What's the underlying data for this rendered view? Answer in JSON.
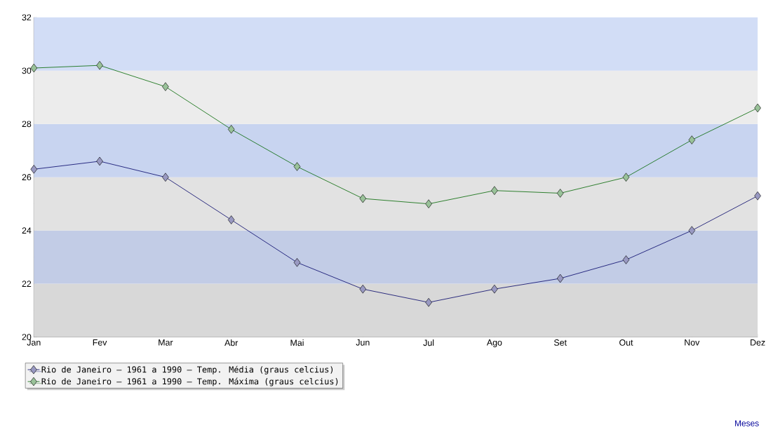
{
  "chart_data": {
    "type": "line",
    "annotations": [
      "Meses"
    ],
    "categories": [
      "Jan",
      "Fev",
      "Mar",
      "Abr",
      "Mai",
      "Jun",
      "Jul",
      "Ago",
      "Set",
      "Out",
      "Nov",
      "Dez"
    ],
    "series": [
      {
        "name": "Rio de Janeiro – 1961 a 1990 – Temp. Média (graus celcius)",
        "color": "#000066",
        "values": [
          26.3,
          26.6,
          26.0,
          24.4,
          22.8,
          21.8,
          21.3,
          21.8,
          22.2,
          22.9,
          24.0,
          25.3
        ]
      },
      {
        "name": "Rio de Janeiro – 1961 a 1990 – Temp. Máxima (graus celcius)",
        "color": "#006600",
        "values": [
          30.1,
          30.2,
          29.4,
          27.8,
          26.4,
          25.2,
          25.0,
          25.5,
          25.4,
          26.0,
          27.4,
          28.6
        ]
      }
    ],
    "ylim": [
      20,
      32
    ],
    "yticks": [
      20,
      22,
      24,
      26,
      28,
      30,
      32
    ],
    "bands": [
      {
        "axis": "y",
        "from": 20,
        "to": 22,
        "color": "#d8d8d8"
      },
      {
        "axis": "y",
        "from": 22,
        "to": 24,
        "color": "#c2cce6"
      },
      {
        "axis": "y",
        "from": 24,
        "to": 26,
        "color": "#e2e2e2"
      },
      {
        "axis": "y",
        "from": 26,
        "to": 28,
        "color": "#c8d4f0"
      },
      {
        "axis": "y",
        "from": 28,
        "to": 30,
        "color": "#ececec"
      },
      {
        "axis": "y",
        "from": 30,
        "to": 32,
        "color": "#d2ddf6"
      }
    ],
    "marker": "diamond",
    "line_style": "solid",
    "legend": "bottom left",
    "grid": false
  }
}
